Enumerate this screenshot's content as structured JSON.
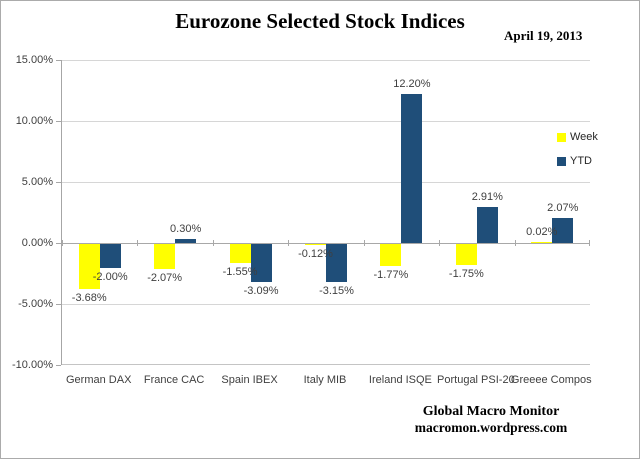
{
  "title": "Eurozone Selected Stock Indices",
  "date_label": "April 19, 2013",
  "footer": {
    "line1": "Global Macro Monitor",
    "line2": "macromon.wordpress.com"
  },
  "legend": [
    {
      "name": "Week",
      "color": "#ffff00"
    },
    {
      "name": "YTD",
      "color": "#1f4e79"
    }
  ],
  "colors": {
    "week_bar": "#ffff00",
    "ytd_bar": "#1f4e79",
    "gridline": "#d6d6d6",
    "axis": "#a6a6a6",
    "label_text": "#3f3f3f"
  },
  "y_axis": {
    "tick_labels": [
      "15.00%",
      "10.00%",
      "5.00%",
      "0.00%",
      "-5.00%",
      "-10.00%"
    ],
    "tick_values": [
      15,
      10,
      5,
      0,
      -5,
      -10
    ]
  },
  "chart_data": {
    "type": "bar",
    "title": "Eurozone Selected Stock Indices",
    "xlabel": "",
    "ylabel": "",
    "ylim": [
      -10,
      15
    ],
    "grid": true,
    "legend_position": "right",
    "categories": [
      "German DAX",
      "France CAC",
      "Spain IBEX",
      "Italy MIB",
      "Ireland ISQE",
      "Portugal PSI-20",
      "Greeee Compos"
    ],
    "series": [
      {
        "name": "Week",
        "color": "#ffff00",
        "values": [
          -3.68,
          -2.07,
          -1.55,
          -0.12,
          -1.77,
          -1.75,
          0.02
        ],
        "labels": [
          "-3.68%",
          "-2.07%",
          "-1.55%",
          "-0.12%",
          "-1.77%",
          "-1.75%",
          "0.02%"
        ]
      },
      {
        "name": "YTD",
        "color": "#1f4e79",
        "values": [
          -2.0,
          0.3,
          -3.09,
          -3.15,
          12.2,
          2.91,
          2.07
        ],
        "labels": [
          "-2.00%",
          "0.30%",
          "-3.09%",
          "-3.15%",
          "12.20%",
          "2.91%",
          "2.07%"
        ]
      }
    ]
  }
}
